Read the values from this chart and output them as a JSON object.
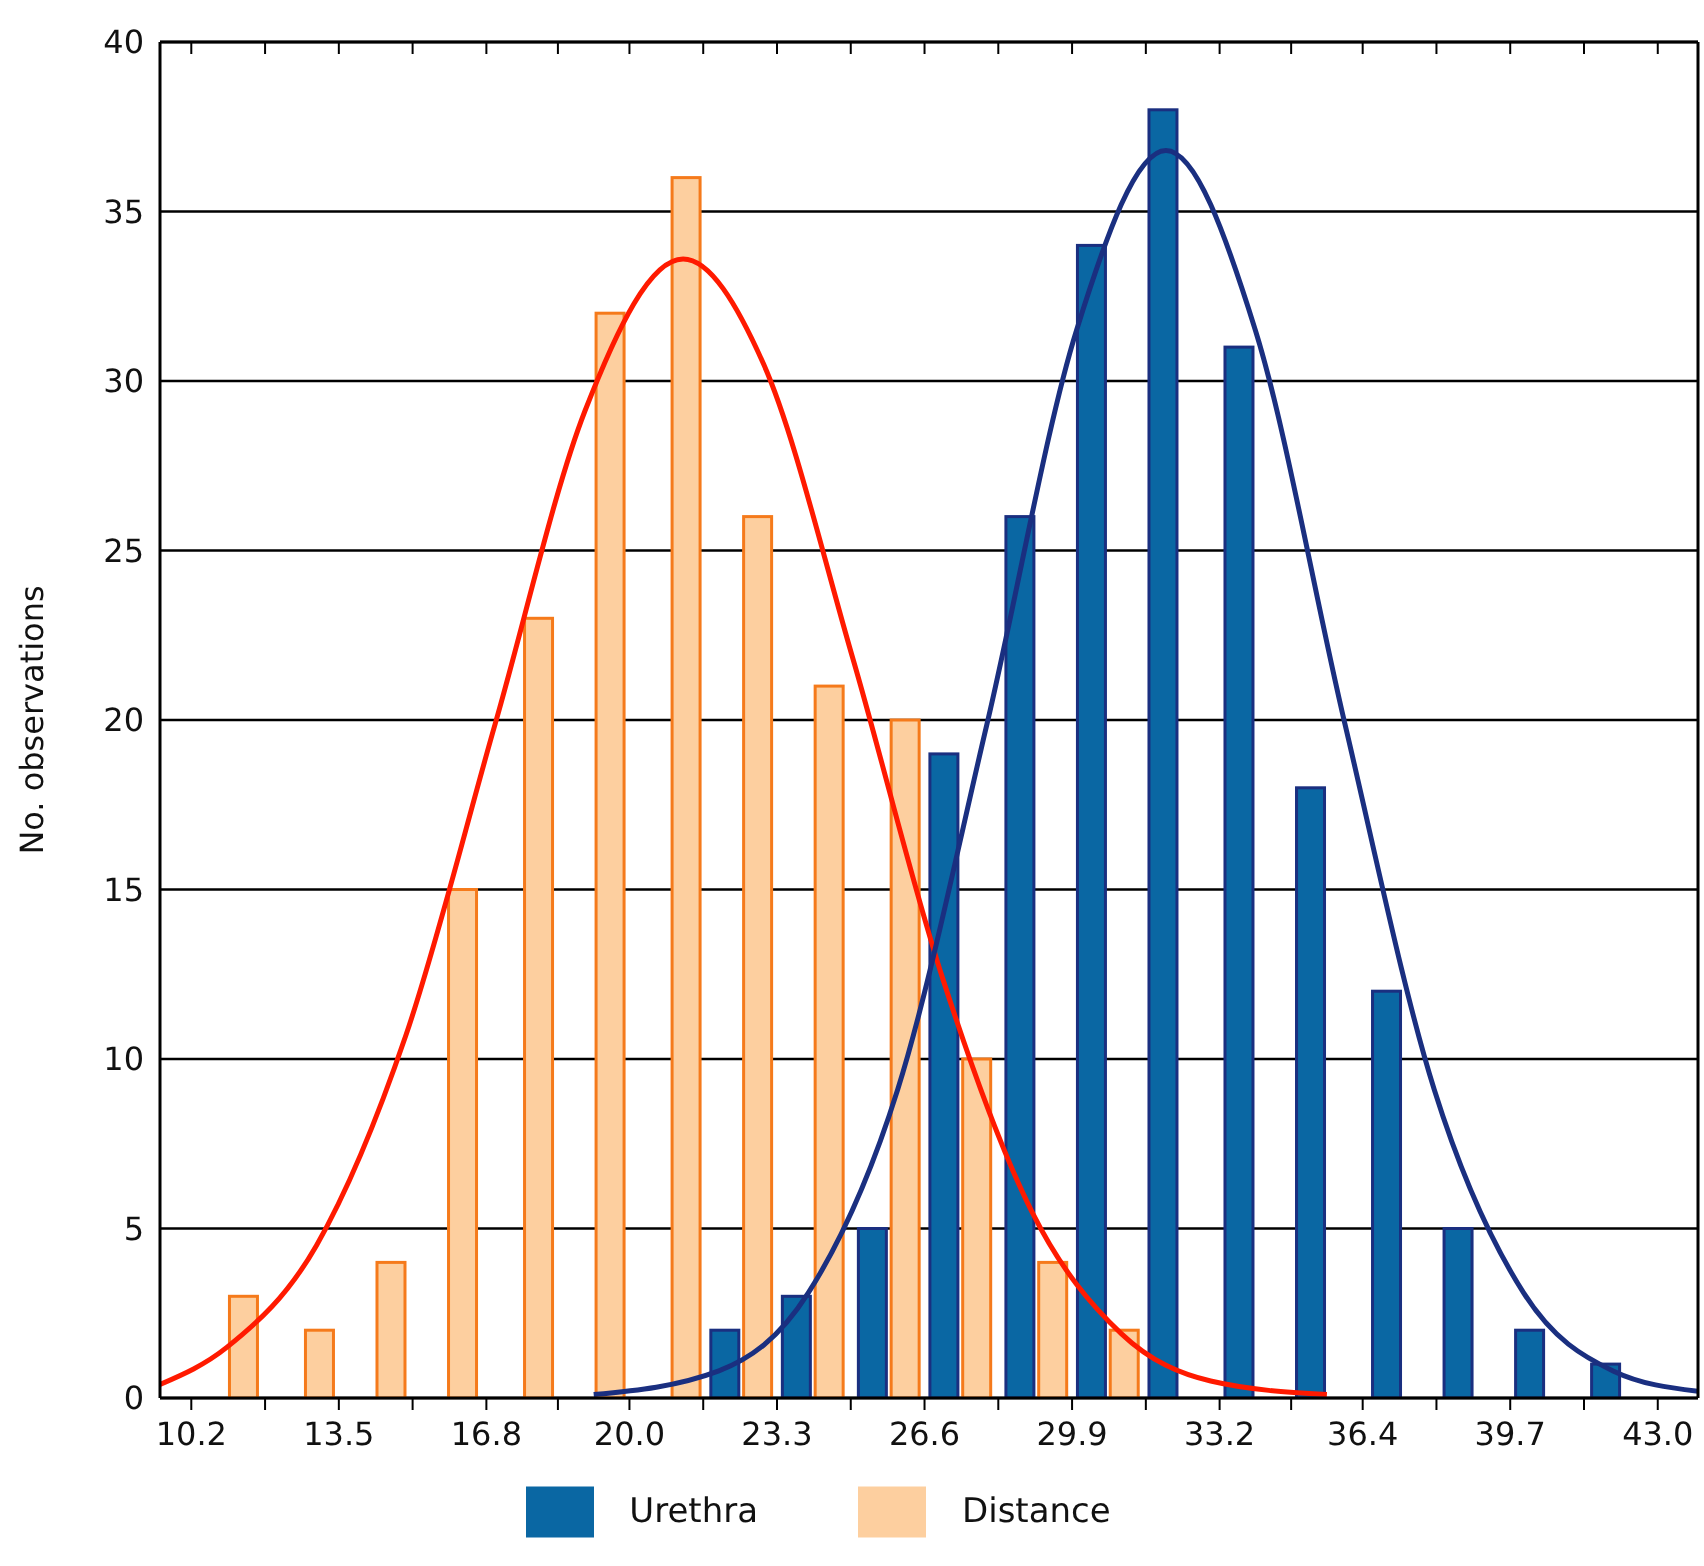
{
  "chart_data": {
    "type": "bar",
    "ylabel": "No. observations",
    "xlim": [
      9.5,
      43.9
    ],
    "ylim": [
      0,
      40
    ],
    "xticks": [
      10.2,
      {
        "value": 11.85,
        "label": null
      },
      13.5,
      {
        "value": 15.15,
        "label": null
      },
      16.8,
      {
        "value": 18.4,
        "label": null
      },
      "20.0",
      {
        "value": 21.65,
        "label": null
      },
      23.3,
      {
        "value": 24.95,
        "label": null
      },
      26.6,
      {
        "value": 28.25,
        "label": null
      },
      29.9,
      {
        "value": 31.55,
        "label": null
      },
      33.2,
      {
        "value": 34.8,
        "label": null
      },
      36.4,
      {
        "value": 38.05,
        "label": null
      },
      39.7,
      {
        "value": 41.35,
        "label": null
      },
      {
        "value": 43.0,
        "label": "43.0"
      }
    ],
    "yticks": [
      0,
      5,
      10,
      15,
      20,
      25,
      30,
      35,
      40
    ],
    "grid": "y",
    "legend": "bottom",
    "series": [
      {
        "name": "Urethra",
        "color": "#0a67a3",
        "x": [
          22.5,
          24.1,
          25.8,
          27.4,
          29.1,
          30.7,
          32.3,
          34.0,
          35.6,
          37.3,
          38.9,
          40.5,
          42.2
        ],
        "values": [
          2,
          3,
          5,
          19,
          26,
          34,
          38,
          31,
          18,
          12,
          5,
          2,
          1
        ]
      },
      {
        "name": "Distance",
        "color": "#fdcf9f",
        "x": [
          11.0,
          12.7,
          14.3,
          15.9,
          17.6,
          19.2,
          20.9,
          22.5,
          24.1,
          25.8,
          27.4,
          29.1,
          30.7
        ],
        "values": [
          3,
          2,
          4,
          15,
          23,
          32,
          36,
          26,
          21,
          20,
          10,
          4,
          2
        ]
      },
      {
        "type": "line",
        "color": "#ff1a00",
        "marker": "none",
        "x": [
          9.5,
          11,
          13,
          15,
          17,
          19,
          21.2,
          23,
          25,
          27,
          29,
          31,
          33,
          35.6
        ],
        "values": [
          0.4,
          1.5,
          4.5,
          10.7,
          19.9,
          29.1,
          33.6,
          30.5,
          21.8,
          12.4,
          5.5,
          1.9,
          0.5,
          0.1
        ]
      },
      {
        "type": "line",
        "color": "#1a2f80",
        "marker": "none",
        "x": [
          19.2,
          22,
          24,
          26,
          28,
          30,
          32,
          34,
          36,
          38,
          40,
          42,
          43.9
        ],
        "values": [
          0.1,
          0.8,
          3.1,
          9.1,
          19.9,
          31.5,
          36.8,
          31.5,
          19.9,
          9.1,
          3.1,
          0.8,
          0.2
        ]
      }
    ]
  }
}
